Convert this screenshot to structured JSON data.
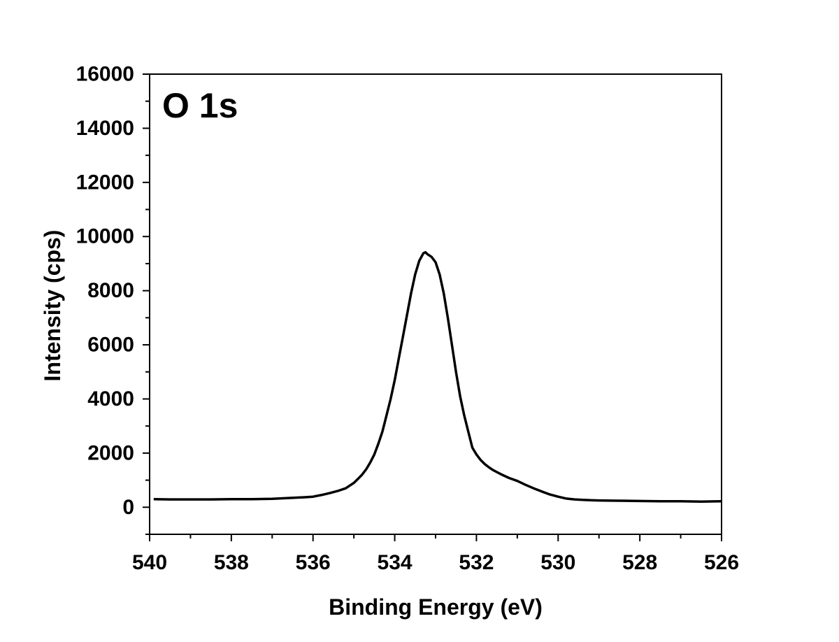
{
  "chart_data": {
    "type": "line",
    "title": "",
    "annotation": "O 1s",
    "xlabel": "Binding Energy (eV)",
    "ylabel": "Intensity (cps)",
    "xlim": [
      540,
      526
    ],
    "ylim": [
      -1000,
      16000
    ],
    "x_reversed": true,
    "xticks": [
      540,
      538,
      536,
      534,
      532,
      530,
      528,
      526
    ],
    "xtick_labels": [
      "540",
      "538",
      "536",
      "534",
      "532",
      "530",
      "528",
      "526"
    ],
    "yticks": [
      0,
      2000,
      4000,
      6000,
      8000,
      10000,
      12000,
      14000,
      16000
    ],
    "ytick_labels": [
      "0",
      "2000",
      "4000",
      "6000",
      "8000",
      "10000",
      "12000",
      "14000",
      "16000"
    ],
    "grid": false,
    "legend": "none",
    "line_color": "#000000",
    "series": [
      {
        "x": [
          539.9,
          539.5,
          539.0,
          538.5,
          538.0,
          537.5,
          537.0,
          536.6,
          536.2,
          536.0,
          535.8,
          535.6,
          535.4,
          535.2,
          535.1,
          535.0,
          534.9,
          534.8,
          534.7,
          534.6,
          534.5,
          534.4,
          534.3,
          534.2,
          534.1,
          534.0,
          533.9,
          533.8,
          533.7,
          533.6,
          533.5,
          533.4,
          533.3,
          533.25,
          533.2,
          533.1,
          533.0,
          532.9,
          532.8,
          532.7,
          532.6,
          532.5,
          532.4,
          532.3,
          532.2,
          532.1,
          532.0,
          531.9,
          531.8,
          531.7,
          531.6,
          531.5,
          531.4,
          531.2,
          531.0,
          530.8,
          530.6,
          530.4,
          530.2,
          530.0,
          529.8,
          529.6,
          529.4,
          529.2,
          529.0,
          528.5,
          528.0,
          527.5,
          527.0,
          526.5,
          526.0
        ],
        "y": [
          300,
          290,
          290,
          290,
          300,
          300,
          310,
          340,
          370,
          390,
          450,
          520,
          600,
          700,
          800,
          900,
          1050,
          1200,
          1400,
          1650,
          1950,
          2350,
          2800,
          3400,
          4000,
          4700,
          5500,
          6300,
          7100,
          7900,
          8600,
          9100,
          9380,
          9420,
          9350,
          9250,
          9050,
          8600,
          7900,
          7000,
          6000,
          5000,
          4100,
          3400,
          2800,
          2200,
          1950,
          1750,
          1600,
          1480,
          1380,
          1300,
          1220,
          1080,
          970,
          830,
          700,
          580,
          470,
          390,
          320,
          290,
          270,
          260,
          250,
          240,
          230,
          220,
          220,
          210,
          220
        ]
      }
    ]
  }
}
